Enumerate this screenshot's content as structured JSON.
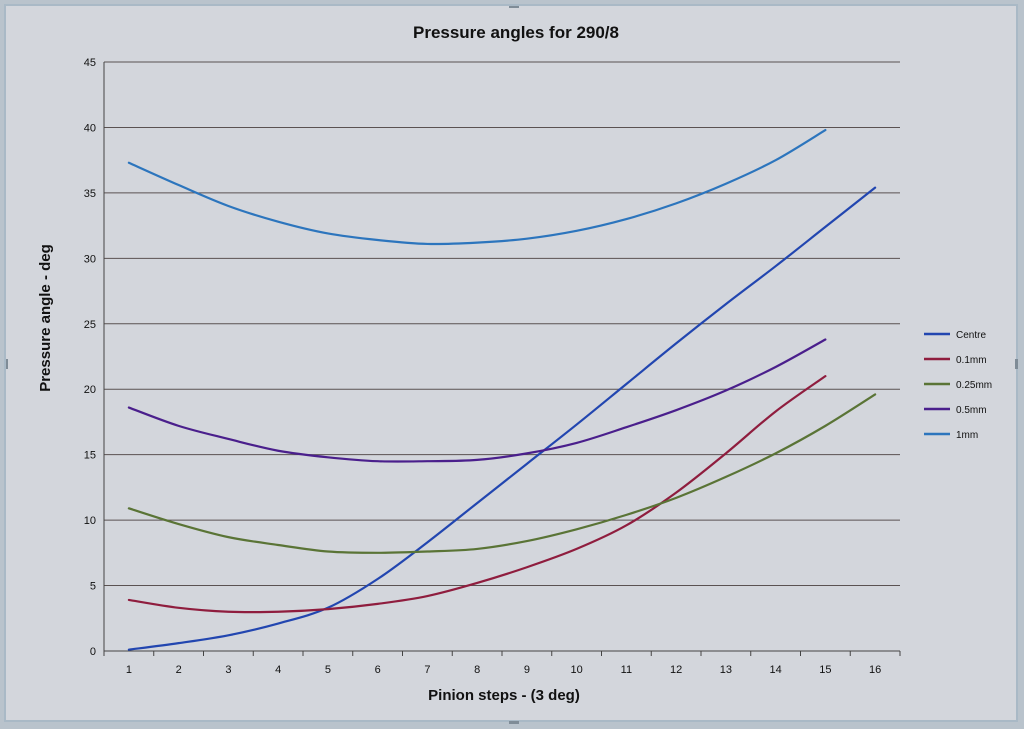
{
  "chart_data": {
    "type": "line",
    "title": "Pressure angles for 290/8",
    "xlabel": "Pinion steps - (3 deg)",
    "ylabel": "Pressure angle - deg",
    "x": [
      1,
      2,
      3,
      4,
      5,
      6,
      7,
      8,
      9,
      10,
      11,
      12,
      13,
      14,
      15,
      16
    ],
    "xlim": [
      0.5,
      16.5
    ],
    "ylim": [
      0,
      45
    ],
    "yticks": [
      0,
      5,
      10,
      15,
      20,
      25,
      30,
      35,
      40,
      45
    ],
    "grid": true,
    "legend_position": "right",
    "series": [
      {
        "name": "Centre",
        "color": "#2246b0",
        "values": [
          0.1,
          0.6,
          1.2,
          2.1,
          3.3,
          5.5,
          8.3,
          11.3,
          14.3,
          17.3,
          20.4,
          23.5,
          26.5,
          29.4,
          32.4,
          35.4
        ]
      },
      {
        "name": "0.1mm",
        "color": "#8f1d3e",
        "values": [
          3.9,
          3.3,
          3.0,
          3.0,
          3.2,
          3.6,
          4.2,
          5.2,
          6.4,
          7.8,
          9.6,
          12.1,
          15.1,
          18.3,
          21.0,
          null
        ]
      },
      {
        "name": "0.25mm",
        "color": "#5a7436",
        "values": [
          10.9,
          9.7,
          8.7,
          8.1,
          7.6,
          7.5,
          7.6,
          7.8,
          8.4,
          9.3,
          10.4,
          11.7,
          13.3,
          15.1,
          17.2,
          19.6
        ]
      },
      {
        "name": "0.5mm",
        "color": "#4a1f8c",
        "values": [
          18.6,
          17.2,
          16.2,
          15.3,
          14.8,
          14.5,
          14.5,
          14.6,
          15.1,
          15.9,
          17.1,
          18.4,
          19.9,
          21.7,
          23.8,
          null
        ]
      },
      {
        "name": "1mm",
        "color": "#2c75bd",
        "values": [
          37.3,
          35.6,
          34.0,
          32.8,
          31.9,
          31.4,
          31.1,
          31.2,
          31.5,
          32.1,
          33.0,
          34.2,
          35.7,
          37.5,
          39.8,
          null
        ]
      }
    ]
  }
}
